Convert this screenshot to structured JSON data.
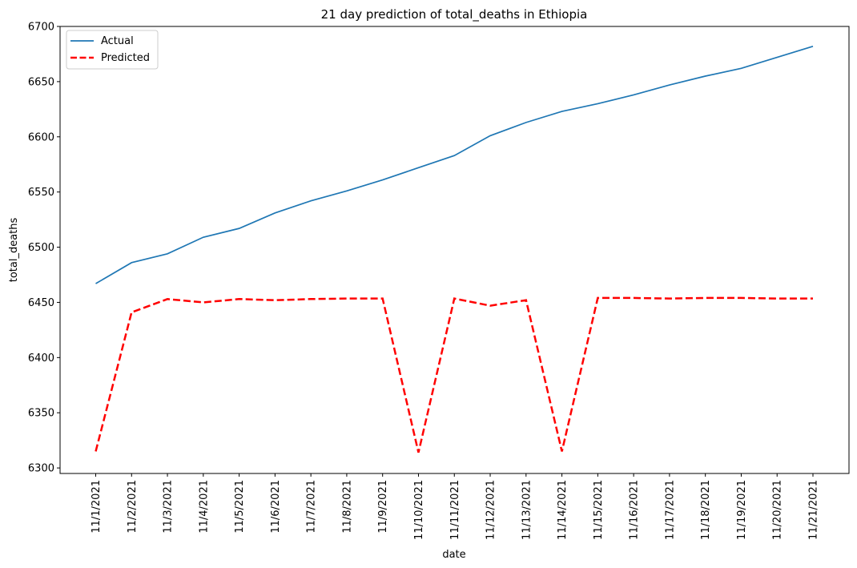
{
  "chart_data": {
    "type": "line",
    "title": "21 day prediction of total_deaths in Ethiopia",
    "xlabel": "date",
    "ylabel": "total_deaths",
    "x": [
      "11/1/2021",
      "11/2/2021",
      "11/3/2021",
      "11/4/2021",
      "11/5/2021",
      "11/6/2021",
      "11/7/2021",
      "11/8/2021",
      "11/9/2021",
      "11/10/2021",
      "11/11/2021",
      "11/12/2021",
      "11/13/2021",
      "11/14/2021",
      "11/15/2021",
      "11/16/2021",
      "11/17/2021",
      "11/18/2021",
      "11/19/2021",
      "11/20/2021",
      "11/21/2021"
    ],
    "ylim": [
      6295,
      6700
    ],
    "yticks": [
      6300,
      6350,
      6400,
      6450,
      6500,
      6550,
      6600,
      6650,
      6700
    ],
    "legend_position": "top-left",
    "grid": false,
    "series": [
      {
        "name": "Actual",
        "color": "#1f77b4",
        "style": "solid",
        "values": [
          6467,
          6486,
          6494,
          6509,
          6517,
          6531,
          6542,
          6551,
          6561,
          6572,
          6583,
          6601,
          6613,
          6623,
          6630,
          6638,
          6647,
          6655,
          6662,
          6672,
          6682
        ]
      },
      {
        "name": "Predicted",
        "color": "#ff0000",
        "style": "dashed",
        "values": [
          6315,
          6441,
          6453,
          6450,
          6453,
          6452,
          6453,
          6453.5,
          6453.5,
          6314,
          6453.5,
          6447,
          6452,
          6315,
          6454,
          6454,
          6453.5,
          6454,
          6454,
          6453.5,
          6453.5
        ]
      }
    ]
  }
}
